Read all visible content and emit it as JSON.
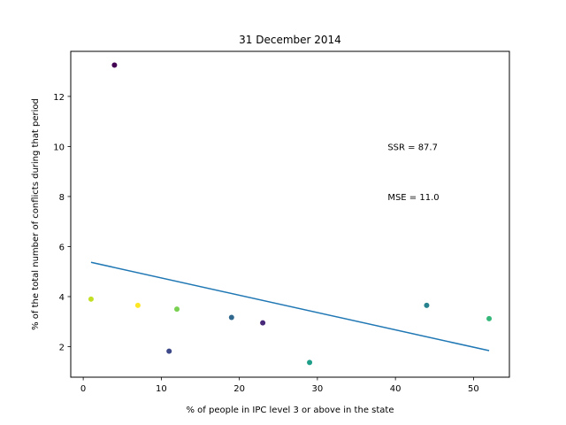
{
  "chart_data": {
    "type": "scatter",
    "title": "31 December 2014",
    "xlabel": "% of people in IPC level 3 or above in the state",
    "ylabel": "% of the total number of conflicts during that period",
    "xlim": [
      -1.6,
      54.6
    ],
    "ylim": [
      0.78,
      13.8
    ],
    "xticks": [
      0,
      10,
      20,
      30,
      40,
      50
    ],
    "yticks": [
      2,
      4,
      6,
      8,
      10,
      12
    ],
    "grid": false,
    "points": [
      {
        "x": 4,
        "y": 13.25,
        "color": "#440154"
      },
      {
        "x": 1,
        "y": 3.9,
        "color": "#c2df23"
      },
      {
        "x": 7,
        "y": 3.65,
        "color": "#fde725"
      },
      {
        "x": 11,
        "y": 1.82,
        "color": "#3e4989"
      },
      {
        "x": 12,
        "y": 3.5,
        "color": "#7ad151"
      },
      {
        "x": 19,
        "y": 3.17,
        "color": "#31688e"
      },
      {
        "x": 23,
        "y": 2.95,
        "color": "#482878"
      },
      {
        "x": 29,
        "y": 1.37,
        "color": "#1f9e89"
      },
      {
        "x": 44,
        "y": 3.65,
        "color": "#26828e"
      },
      {
        "x": 52,
        "y": 3.12,
        "color": "#35b779"
      }
    ],
    "regression_line": {
      "x": [
        1,
        52
      ],
      "y": [
        5.37,
        1.84
      ],
      "color": "#1f77b4"
    },
    "annotations": [
      {
        "text": "SSR = 87.7",
        "x": 39,
        "y": 10.0
      },
      {
        "text": "MSE = 11.0",
        "x": 39,
        "y": 8.0
      }
    ]
  }
}
